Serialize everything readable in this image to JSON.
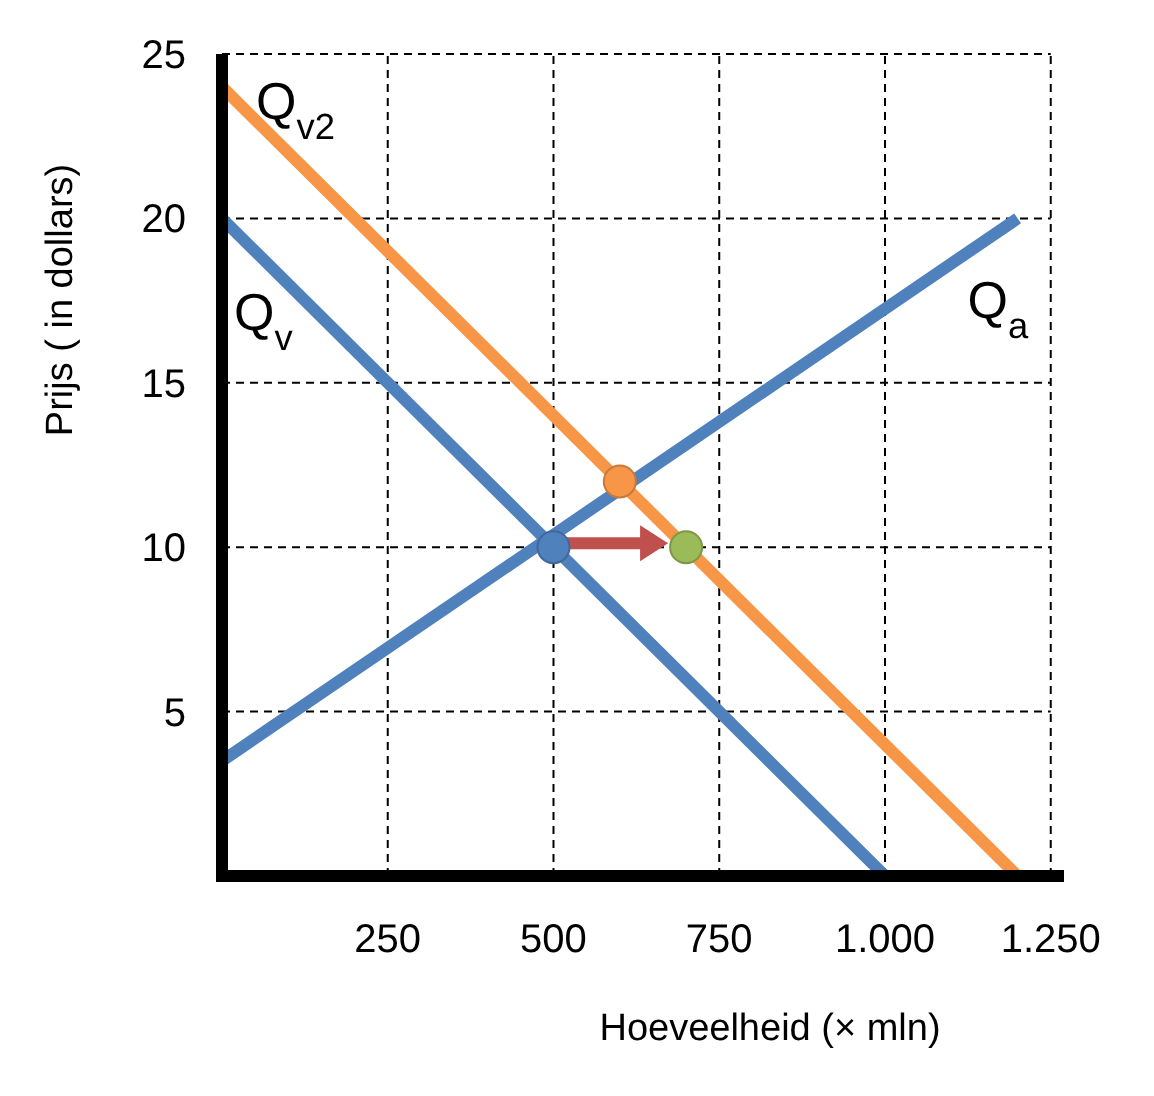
{
  "chart_data": {
    "type": "line",
    "xlabel": "Hoeveelheid (× mln)",
    "ylabel": "Prijs ( in dollars)",
    "xlim": [
      0,
      1270
    ],
    "ylim": [
      0,
      25
    ],
    "xticks": [
      250,
      500,
      750,
      {
        "value": 1000,
        "label": "1.000"
      },
      {
        "value": 1250,
        "label": "1.250"
      }
    ],
    "yticks": [
      5,
      10,
      15,
      20,
      25
    ],
    "grid": true,
    "series": [
      {
        "name": "Q$_{v}$",
        "color": "#4f81bd",
        "x": [
          0,
          1000
        ],
        "values": [
          20,
          0
        ]
      },
      {
        "name": "Q$_{v2}$",
        "color": "#f79646",
        "x": [
          0,
          1200
        ],
        "values": [
          24,
          0
        ]
      },
      {
        "name": "Q$_{a}$",
        "color": "#4f81bd",
        "x": [
          0,
          1200
        ],
        "values": [
          3.5,
          20
        ]
      },
      {
        "type": "scatter",
        "marker": "circle",
        "x": [
          500,
          600,
          700
        ],
        "values": [
          10,
          12,
          10
        ],
        "colors": [
          "#4f81bd",
          "#f79646",
          "#9bbb59"
        ]
      }
    ]
  }
}
